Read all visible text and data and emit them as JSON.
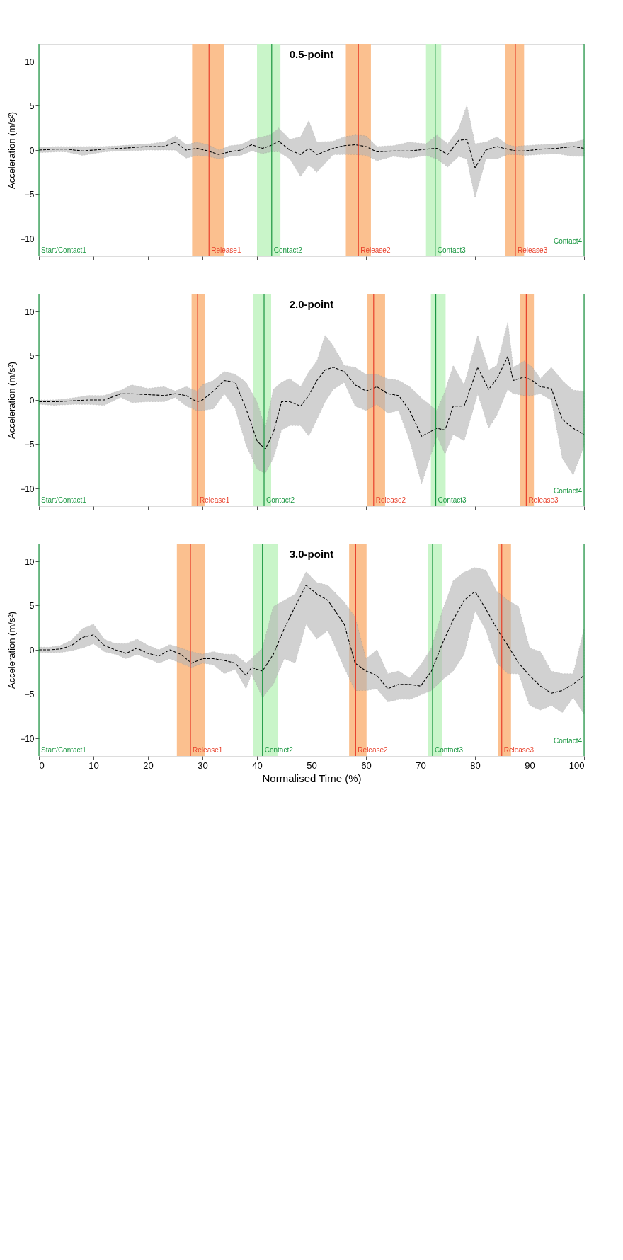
{
  "chart_data": [
    {
      "type": "line",
      "title": "0.5-point",
      "ylabel": "Acceleration (m/s²)",
      "xlim": [
        0,
        100
      ],
      "xticks": [
        0,
        10,
        20,
        30,
        40,
        50,
        60,
        70,
        80,
        90,
        100
      ],
      "ylim": [
        -12,
        12
      ],
      "yticks": [
        -10,
        -5,
        0,
        5,
        10
      ],
      "tick_labels": "y",
      "line_style": "dashed",
      "series": [
        {
          "color": "#000000",
          "x": [
            0,
            3,
            5,
            8,
            12,
            15,
            20,
            23,
            25,
            27,
            29,
            31,
            33,
            35,
            37,
            39,
            41,
            42.5,
            44,
            46,
            48,
            49.5,
            51,
            54,
            56,
            58,
            60,
            62,
            65,
            68,
            71,
            73,
            75,
            77,
            78.5,
            80,
            82,
            84,
            86,
            87.5,
            89,
            92,
            95,
            98,
            100
          ],
          "values": [
            0,
            0.1,
            0.1,
            -0.1,
            0.1,
            0.2,
            0.4,
            0.4,
            0.9,
            0,
            0.2,
            -0.1,
            -0.5,
            -0.2,
            0,
            0.6,
            0.2,
            0.5,
            1.0,
            0,
            -0.5,
            0.2,
            -0.5,
            0.2,
            0.5,
            0.6,
            0.4,
            -0.2,
            -0.1,
            -0.1,
            0.1,
            0.2,
            -0.5,
            1.1,
            1.2,
            -2.0,
            0,
            0.4,
            0.1,
            -0.1,
            -0.1,
            0.1,
            0.2,
            0.4,
            0.2
          ],
          "lower": [
            -0.3,
            -0.2,
            -0.2,
            -0.6,
            -0.2,
            -0.1,
            0,
            0,
            0,
            -0.9,
            -0.6,
            -0.7,
            -1.0,
            -0.7,
            -0.6,
            -0.1,
            -0.4,
            -0.2,
            -0.2,
            -1.0,
            -3.0,
            -1.7,
            -2.5,
            -0.5,
            -0.5,
            -0.5,
            -0.6,
            -1.2,
            -0.7,
            -0.9,
            -0.6,
            -1.0,
            -1.9,
            -0.7,
            -1.0,
            -5.4,
            -1.0,
            -1.0,
            -0.5,
            -0.5,
            -0.6,
            -0.5,
            -0.4,
            -0.7,
            -0.7
          ],
          "upper": [
            0.3,
            0.4,
            0.4,
            0.4,
            0.4,
            0.5,
            0.7,
            0.9,
            1.6,
            0.6,
            0.9,
            0.6,
            0,
            0.5,
            0.6,
            1.2,
            1.5,
            1.7,
            2.5,
            1.2,
            1.5,
            3.3,
            0.9,
            1.0,
            1.5,
            1.7,
            1.6,
            0.4,
            0.5,
            0.9,
            0.7,
            1.7,
            0.7,
            2.4,
            5.1,
            0.7,
            0.9,
            1.5,
            0.6,
            0.4,
            0.5,
            0.6,
            0.7,
            0.9,
            1.2
          ]
        }
      ],
      "ref_lines": [
        {
          "axis": "x",
          "value": 0,
          "label": "Start/Contact1",
          "color": "#1a9641"
        },
        {
          "axis": "x",
          "value": 31.2,
          "label": "Release1",
          "color": "#e8412c"
        },
        {
          "axis": "x",
          "value": 42.7,
          "label": "Contact2",
          "color": "#1a9641"
        },
        {
          "axis": "x",
          "value": 58.6,
          "label": "Release2",
          "color": "#e8412c"
        },
        {
          "axis": "x",
          "value": 72.7,
          "label": "Contact3",
          "color": "#1a9641"
        },
        {
          "axis": "x",
          "value": 87.4,
          "label": "Release3",
          "color": "#e8412c"
        },
        {
          "axis": "x",
          "value": 100,
          "label": "Contact4",
          "color": "#1a9641"
        }
      ],
      "bands": [
        {
          "axis": "x",
          "from": 28.1,
          "to": 33.9,
          "color": "#fbc08f"
        },
        {
          "axis": "x",
          "from": 40,
          "to": 44.3,
          "color": "#c9f5c9"
        },
        {
          "axis": "x",
          "from": 56.3,
          "to": 60.9,
          "color": "#fbc08f"
        },
        {
          "axis": "x",
          "from": 71,
          "to": 73.8,
          "color": "#c9f5c9"
        },
        {
          "axis": "x",
          "from": 85.5,
          "to": 89,
          "color": "#fbc08f"
        }
      ]
    },
    {
      "type": "line",
      "title": "2.0-point",
      "ylabel": "Acceleration (m/s²)",
      "xlim": [
        0,
        100
      ],
      "xticks": [
        0,
        10,
        20,
        30,
        40,
        50,
        60,
        70,
        80,
        90,
        100
      ],
      "ylim": [
        -12,
        12
      ],
      "yticks": [
        -10,
        -5,
        0,
        5,
        10
      ],
      "tick_labels": "y",
      "line_style": "dashed",
      "series": [
        {
          "color": "#000000",
          "x": [
            0,
            3,
            6,
            9,
            12,
            15,
            17,
            20,
            23,
            25,
            27,
            29,
            30,
            32,
            34,
            36,
            38,
            40,
            41.5,
            43,
            44.5,
            46,
            48,
            49.5,
            51,
            52.5,
            54,
            56,
            58,
            60,
            62,
            64,
            66,
            68,
            70.2,
            73,
            74.5,
            76,
            78,
            80.5,
            82.5,
            84,
            86,
            87,
            89,
            90.5,
            92,
            94,
            96,
            98,
            100
          ],
          "values": [
            -0.2,
            -0.2,
            -0.1,
            0,
            0,
            0.7,
            0.7,
            0.6,
            0.5,
            0.7,
            0.5,
            -0.2,
            0,
            1.0,
            2.2,
            2.0,
            -1.0,
            -4.6,
            -5.6,
            -3.7,
            -0.2,
            -0.2,
            -0.7,
            0.5,
            2.2,
            3.4,
            3.7,
            3.2,
            1.7,
            1.0,
            1.5,
            0.7,
            0.5,
            -1.2,
            -4.1,
            -3.2,
            -3.4,
            -0.7,
            -0.7,
            3.7,
            1.2,
            2.4,
            4.9,
            2.2,
            2.6,
            2.2,
            1.5,
            1.3,
            -2.2,
            -3.2,
            -3.9
          ],
          "lower": [
            -0.5,
            -0.6,
            -0.5,
            -0.5,
            -0.6,
            0.3,
            -0.3,
            -0.2,
            -0.2,
            0.3,
            -0.7,
            -1.2,
            -1.2,
            -1.0,
            0.7,
            -1.0,
            -5.1,
            -7.8,
            -8.3,
            -6.6,
            -3.4,
            -2.9,
            -2.9,
            -4.1,
            -2.2,
            -0.2,
            1.2,
            2.0,
            -0.7,
            -1.2,
            -0.5,
            -1.5,
            -1.2,
            -4.6,
            -9.5,
            -4.1,
            -6.1,
            -3.9,
            -4.6,
            0.7,
            -3.2,
            -1.7,
            1.2,
            0.7,
            0.5,
            0.5,
            0.7,
            0,
            -6.6,
            -8.5,
            -5.2
          ],
          "upper": [
            0,
            0,
            0.2,
            0.5,
            0.5,
            1.1,
            1.7,
            1.3,
            1.5,
            1.0,
            1.5,
            1.0,
            1.7,
            2.2,
            3.2,
            2.9,
            2.0,
            -0.2,
            -3.2,
            1.2,
            2.0,
            2.4,
            1.5,
            3.2,
            4.4,
            7.3,
            6.1,
            3.9,
            3.7,
            2.9,
            2.9,
            2.4,
            2.2,
            1.5,
            0.2,
            -1.2,
            1.0,
            3.9,
            1.7,
            7.3,
            3.4,
            3.9,
            8.8,
            3.7,
            4.4,
            3.7,
            2.4,
            3.7,
            2.2,
            1.1,
            1.0
          ]
        }
      ],
      "ref_lines": [
        {
          "axis": "x",
          "value": 0,
          "label": "Start/Contact1",
          "color": "#1a9641"
        },
        {
          "axis": "x",
          "value": 29.1,
          "label": "Release1",
          "color": "#e8412c"
        },
        {
          "axis": "x",
          "value": 41.3,
          "label": "Contact2",
          "color": "#1a9641"
        },
        {
          "axis": "x",
          "value": 61.4,
          "label": "Release2",
          "color": "#e8412c"
        },
        {
          "axis": "x",
          "value": 72.8,
          "label": "Contact3",
          "color": "#1a9641"
        },
        {
          "axis": "x",
          "value": 89.4,
          "label": "Release3",
          "color": "#e8412c"
        },
        {
          "axis": "x",
          "value": 100,
          "label": "Contact4",
          "color": "#1a9641"
        }
      ],
      "bands": [
        {
          "axis": "x",
          "from": 28,
          "to": 30.5,
          "color": "#fbc08f"
        },
        {
          "axis": "x",
          "from": 39.3,
          "to": 42.6,
          "color": "#c9f5c9"
        },
        {
          "axis": "x",
          "from": 60.2,
          "to": 63.5,
          "color": "#fbc08f"
        },
        {
          "axis": "x",
          "from": 71.9,
          "to": 74.6,
          "color": "#c9f5c9"
        },
        {
          "axis": "x",
          "from": 88.3,
          "to": 90.8,
          "color": "#fbc08f"
        }
      ]
    },
    {
      "type": "line",
      "title": "3.0-point",
      "xlabel": "Normalised Time (%)",
      "ylabel": "Acceleration (m/s²)",
      "xlim": [
        0,
        100
      ],
      "xticks": [
        0,
        10,
        20,
        30,
        40,
        50,
        60,
        70,
        80,
        90,
        100
      ],
      "ylim": [
        -12,
        12
      ],
      "yticks": [
        -10,
        -5,
        0,
        5,
        10
      ],
      "line_style": "dashed",
      "series": [
        {
          "color": "#000000",
          "x": [
            0,
            2,
            4,
            6,
            8,
            10,
            12,
            14,
            16,
            18,
            20,
            22,
            24,
            26,
            28,
            30,
            32,
            34,
            36,
            38,
            39,
            41,
            43,
            45,
            47,
            49,
            51,
            53,
            56,
            58,
            60,
            62,
            64,
            66,
            68,
            70,
            72,
            74,
            76,
            78,
            80,
            82,
            84,
            86,
            88,
            90,
            92,
            94,
            96,
            98,
            100
          ],
          "values": [
            0,
            0,
            0.1,
            0.5,
            1.4,
            1.7,
            0.5,
            0,
            -0.4,
            0.2,
            -0.4,
            -0.7,
            0,
            -0.5,
            -1.5,
            -1.0,
            -1.0,
            -1.2,
            -1.5,
            -2.9,
            -2.0,
            -2.4,
            -0.5,
            2.4,
            4.9,
            7.3,
            6.3,
            5.6,
            2.9,
            -1.5,
            -2.4,
            -2.9,
            -4.4,
            -3.9,
            -3.9,
            -4.1,
            -2.4,
            0.7,
            3.4,
            5.6,
            6.6,
            4.6,
            2.4,
            0.5,
            -1.5,
            -2.9,
            -4.1,
            -4.9,
            -4.6,
            -3.9,
            -2.9
          ],
          "lower": [
            -0.3,
            -0.3,
            -0.3,
            -0.1,
            0.2,
            0.7,
            -0.2,
            -0.5,
            -1.0,
            -0.5,
            -1.0,
            -1.5,
            -1.0,
            -1.5,
            -2.0,
            -1.5,
            -1.7,
            -2.7,
            -2.2,
            -4.4,
            -2.7,
            -5.4,
            -3.9,
            -1.0,
            -1.5,
            2.9,
            1.2,
            2.2,
            -2.0,
            -4.6,
            -4.6,
            -4.4,
            -5.9,
            -5.6,
            -5.6,
            -5.1,
            -4.6,
            -3.4,
            -2.4,
            -0.5,
            4.4,
            2.2,
            -1.5,
            -2.7,
            -2.7,
            -6.3,
            -6.8,
            -6.3,
            -7.1,
            -5.4,
            -7.3
          ],
          "upper": [
            0.3,
            0.3,
            0.5,
            1.1,
            2.4,
            2.9,
            1.2,
            0.7,
            0.7,
            1.2,
            0.5,
            0,
            0.6,
            0.2,
            -0.2,
            -0.5,
            -0.2,
            -0.5,
            -0.5,
            -1.5,
            -1.0,
            0.2,
            4.9,
            5.6,
            6.3,
            8.8,
            7.6,
            7.3,
            5.4,
            3.7,
            -1.0,
            0,
            -2.7,
            -2.4,
            -3.2,
            -1.7,
            0.2,
            4.4,
            7.8,
            8.8,
            9.3,
            9.0,
            6.6,
            5.6,
            4.9,
            0.2,
            -0.2,
            -2.4,
            -2.7,
            -2.7,
            2.4
          ]
        }
      ],
      "ref_lines": [
        {
          "axis": "x",
          "value": 0,
          "label": "Start/Contact1",
          "color": "#1a9641"
        },
        {
          "axis": "x",
          "value": 27.8,
          "label": "Release1",
          "color": "#e8412c"
        },
        {
          "axis": "x",
          "value": 41,
          "label": "Contact2",
          "color": "#1a9641"
        },
        {
          "axis": "x",
          "value": 58.1,
          "label": "Release2",
          "color": "#e8412c"
        },
        {
          "axis": "x",
          "value": 72.2,
          "label": "Contact3",
          "color": "#1a9641"
        },
        {
          "axis": "x",
          "value": 84.9,
          "label": "Release3",
          "color": "#e8412c"
        },
        {
          "axis": "x",
          "value": 100,
          "label": "Contact4",
          "color": "#1a9641"
        }
      ],
      "bands": [
        {
          "axis": "x",
          "from": 25.3,
          "to": 30.4,
          "color": "#fbc08f"
        },
        {
          "axis": "x",
          "from": 39.3,
          "to": 43.9,
          "color": "#c9f5c9"
        },
        {
          "axis": "x",
          "from": 56.9,
          "to": 60.1,
          "color": "#fbc08f"
        },
        {
          "axis": "x",
          "from": 71.4,
          "to": 74,
          "color": "#c9f5c9"
        },
        {
          "axis": "x",
          "from": 84.2,
          "to": 86.6,
          "color": "#fbc08f"
        }
      ]
    }
  ]
}
